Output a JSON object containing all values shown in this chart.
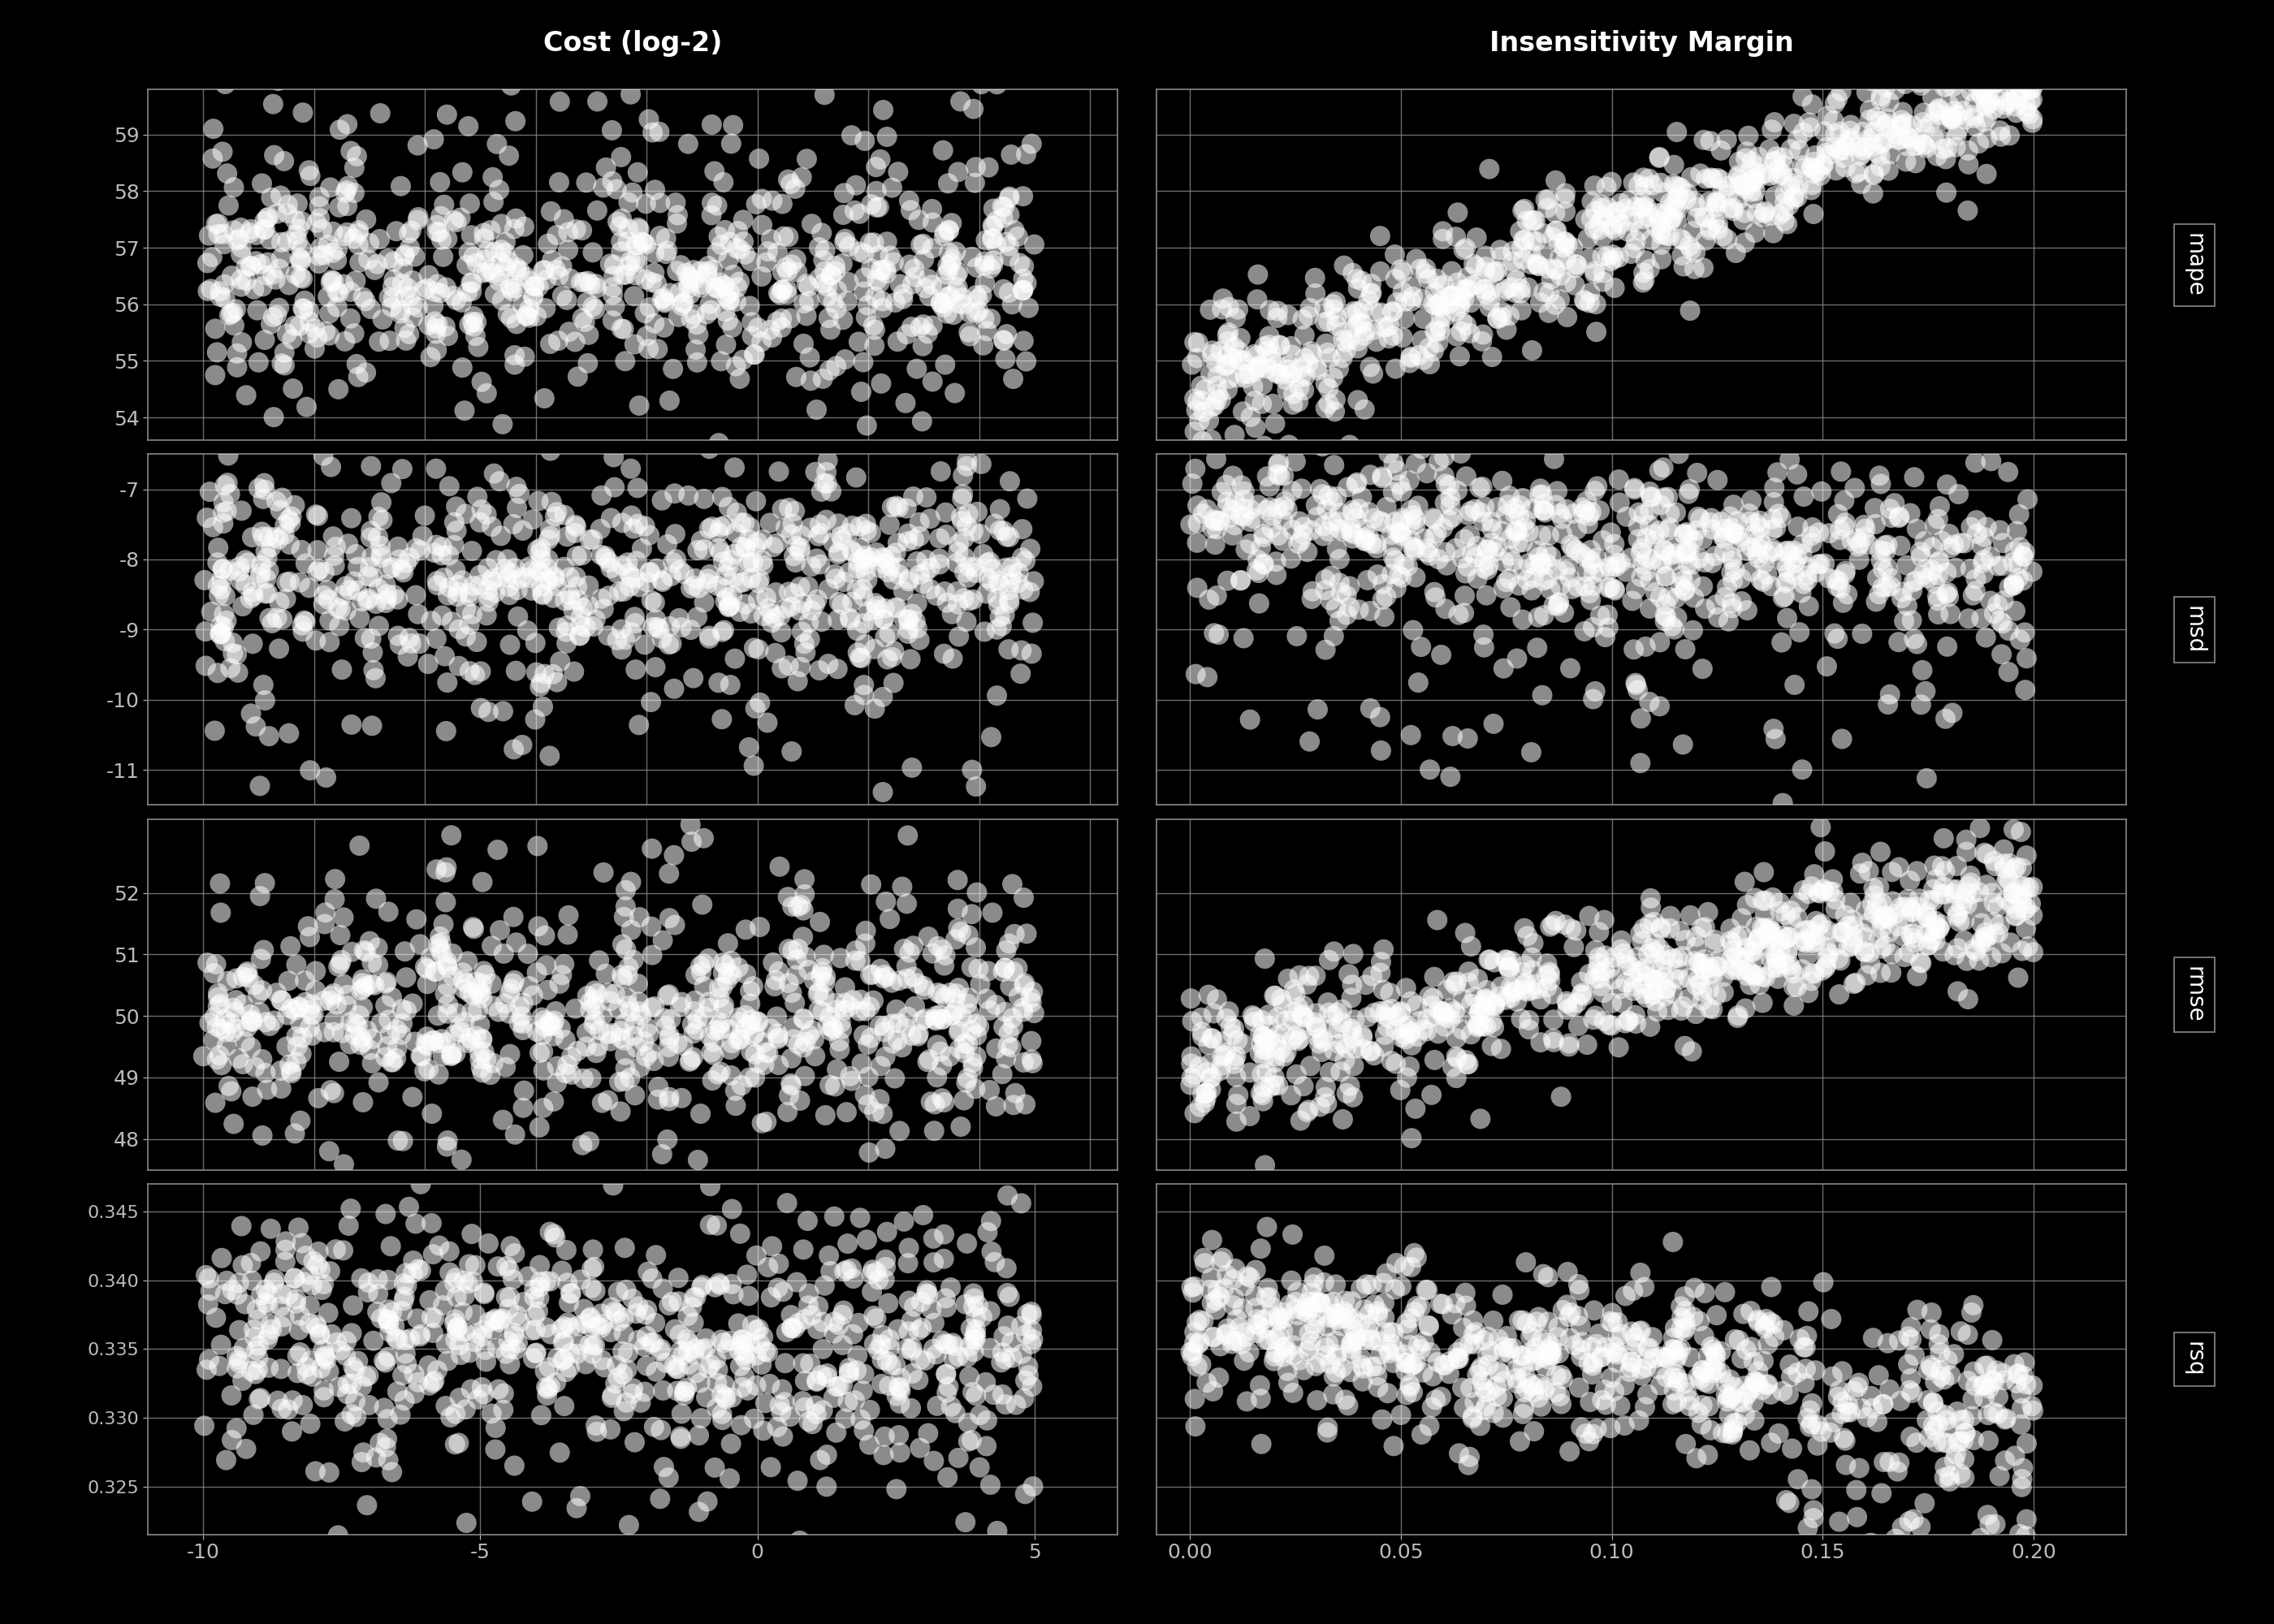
{
  "background_color": "#000000",
  "axes_bg_color": "#000000",
  "grid_color": "#888888",
  "text_color": "#bbbbbb",
  "marker_color": "white",
  "marker_alpha": 0.55,
  "marker_size": 18,
  "col_titles": [
    "Cost (log-2)",
    "Insensitivity Margin"
  ],
  "row_labels": [
    "mape",
    "msd",
    "rmse",
    "rsq"
  ],
  "cost_xlim": [
    -11.0,
    6.5
  ],
  "cost_xticks": [
    -10,
    -5,
    0,
    5
  ],
  "insens_xlim": [
    -0.008,
    0.222
  ],
  "insens_xticks": [
    0.0,
    0.05,
    0.1,
    0.15,
    0.2
  ],
  "ylims": {
    "mape": [
      53.6,
      59.8
    ],
    "msd": [
      -11.5,
      -6.5
    ],
    "rmse": [
      47.5,
      53.2
    ],
    "rsq": [
      0.3215,
      0.347
    ]
  },
  "yticks": {
    "mape": [
      54,
      55,
      56,
      57,
      58,
      59
    ],
    "msd": [
      -11,
      -10,
      -9,
      -8,
      -7
    ],
    "rmse": [
      48,
      49,
      50,
      51,
      52
    ],
    "rsq": [
      0.325,
      0.33,
      0.335,
      0.34,
      0.345
    ]
  },
  "n_points": 800
}
